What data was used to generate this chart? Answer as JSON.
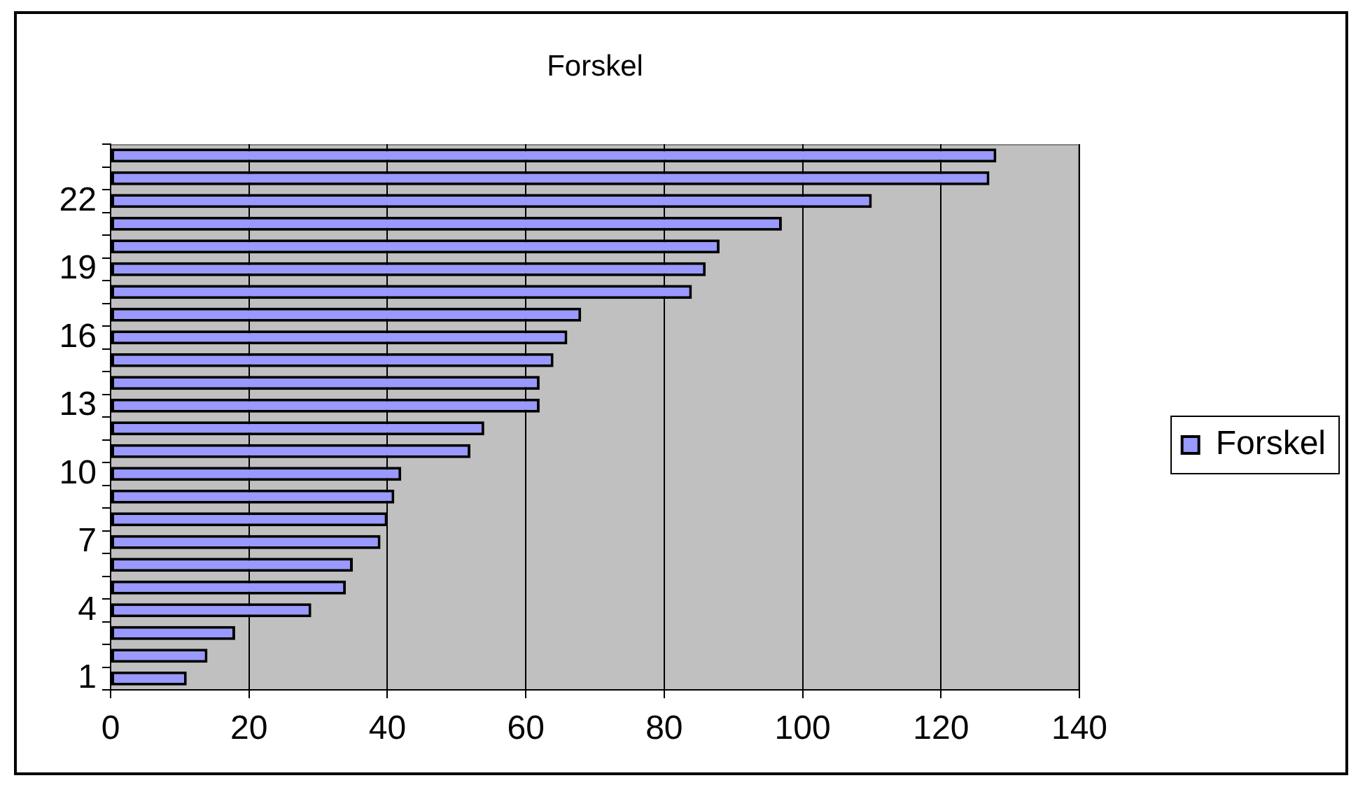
{
  "chart_data": {
    "type": "bar",
    "orientation": "horizontal",
    "title": "Forskel",
    "categories": [
      null,
      null,
      "22",
      null,
      null,
      "19",
      null,
      null,
      "16",
      null,
      null,
      "13",
      null,
      null,
      "10",
      null,
      null,
      "7",
      null,
      null,
      "4",
      null,
      null,
      "1"
    ],
    "series": [
      {
        "name": "Forskel",
        "color": "#9999ff",
        "values": [
          128,
          127,
          110,
          97,
          88,
          86,
          84,
          68,
          66,
          64,
          62,
          62,
          54,
          52,
          42,
          41,
          40,
          39,
          35,
          34,
          29,
          18,
          14,
          11
        ]
      }
    ],
    "xlim": [
      0,
      140
    ],
    "xticks": [
      0,
      20,
      40,
      60,
      80,
      100,
      120,
      140
    ],
    "grid": "x",
    "legend": "right"
  }
}
